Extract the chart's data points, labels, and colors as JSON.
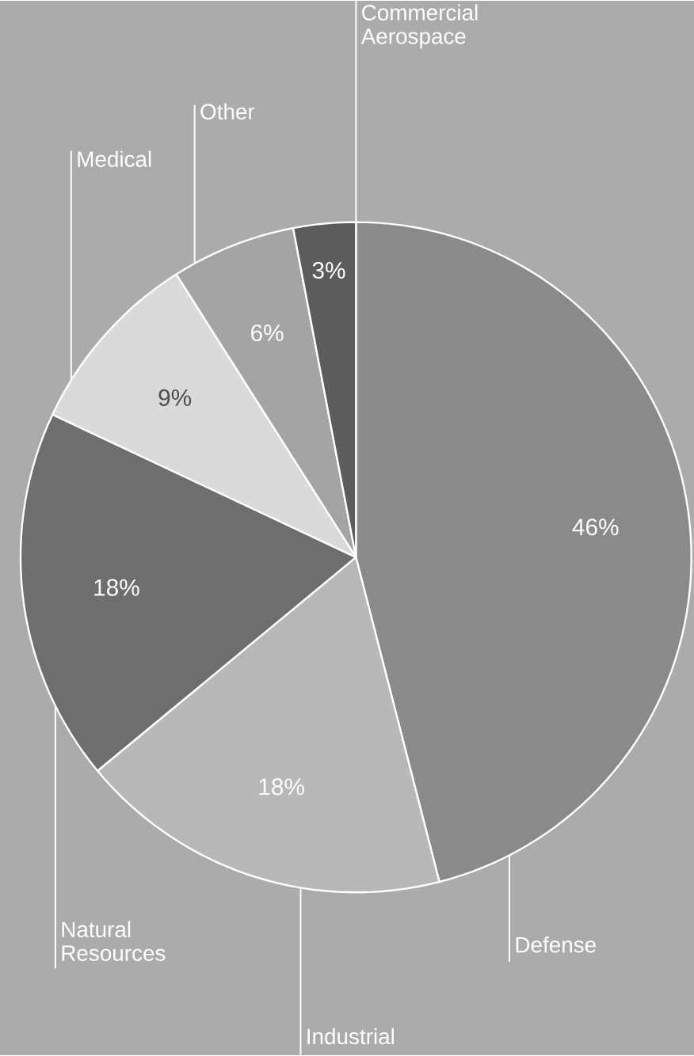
{
  "chart_data": {
    "type": "pie",
    "categories": [
      "Defense",
      "Industrial",
      "Natural Resources",
      "Medical",
      "Other",
      "Commercial Aerospace"
    ],
    "values": [
      46,
      18,
      18,
      9,
      6,
      3
    ],
    "colors": [
      "#8a8a8a",
      "#b8b8b8",
      "#6e6e6e",
      "#dadada",
      "#a4a4a4",
      "#5c5c5c"
    ],
    "value_labels": [
      "46%",
      "18%",
      "18%",
      "9%",
      "6%",
      "3%"
    ]
  }
}
